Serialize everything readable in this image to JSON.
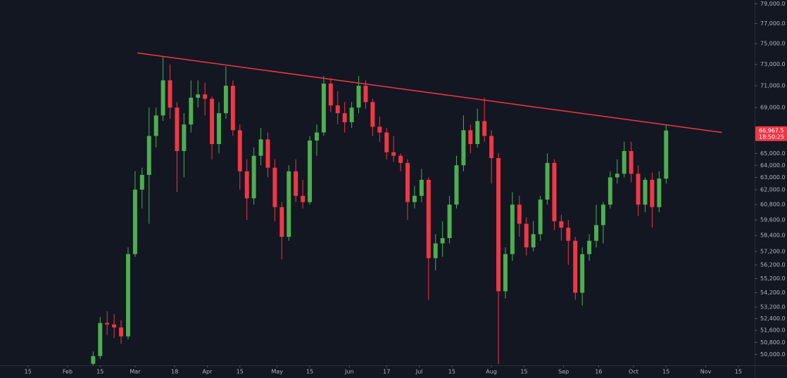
{
  "chart_data": {
    "type": "candlestick",
    "log_scale": true,
    "grid": false,
    "up_color": "#4caf50",
    "down_color": "#f23645",
    "xlim": [
      3,
      327
    ],
    "xticks": [
      {
        "value": 15,
        "label": "15"
      },
      {
        "value": 32,
        "label": "Feb"
      },
      {
        "value": 46,
        "label": "15"
      },
      {
        "value": 61,
        "label": "Mar"
      },
      {
        "value": 78,
        "label": "18"
      },
      {
        "value": 92,
        "label": "Apr"
      },
      {
        "value": 106,
        "label": "15"
      },
      {
        "value": 122,
        "label": "May"
      },
      {
        "value": 136,
        "label": "15"
      },
      {
        "value": 153,
        "label": "Jun"
      },
      {
        "value": 169,
        "label": "17"
      },
      {
        "value": 183,
        "label": "Jul"
      },
      {
        "value": 197,
        "label": "15"
      },
      {
        "value": 214,
        "label": "Aug"
      },
      {
        "value": 228,
        "label": "15"
      },
      {
        "value": 245,
        "label": "Sep"
      },
      {
        "value": 260,
        "label": "16"
      },
      {
        "value": 275,
        "label": "Oct"
      },
      {
        "value": 289,
        "label": "15"
      },
      {
        "value": 306,
        "label": "Nov"
      },
      {
        "value": 320,
        "label": "15"
      }
    ],
    "ylim": [
      49300,
      79400
    ],
    "yticks": [
      {
        "value": 79000,
        "label": "79,000.0"
      },
      {
        "value": 77000,
        "label": "77,000.0"
      },
      {
        "value": 75000,
        "label": "75,000.0"
      },
      {
        "value": 73000,
        "label": "73,000.0"
      },
      {
        "value": 71000,
        "label": "71,000.0"
      },
      {
        "value": 69000,
        "label": "69,000.0"
      },
      {
        "value": 65000,
        "label": "65,000.0"
      },
      {
        "value": 64000,
        "label": "64,000.0"
      },
      {
        "value": 63000,
        "label": "63,000.0"
      },
      {
        "value": 62000,
        "label": "62,000.0"
      },
      {
        "value": 60800,
        "label": "60,800.0"
      },
      {
        "value": 59600,
        "label": "59,600.0"
      },
      {
        "value": 58400,
        "label": "58,400.0"
      },
      {
        "value": 57200,
        "label": "57,200.0"
      },
      {
        "value": 56200,
        "label": "56,200.0"
      },
      {
        "value": 55200,
        "label": "55,200.0"
      },
      {
        "value": 54200,
        "label": "54,200.0"
      },
      {
        "value": 53200,
        "label": "53,200.0"
      },
      {
        "value": 52400,
        "label": "52,400.0"
      },
      {
        "value": 51600,
        "label": "51,600.0"
      },
      {
        "value": 50800,
        "label": "50,800.0"
      },
      {
        "value": 50000,
        "label": "50,000.0"
      }
    ],
    "last_price": {
      "value": 66967.5,
      "label": "66,967.5"
    },
    "countdown": "18:50:25",
    "trendline": {
      "color": "#f23645",
      "x": [
        62,
        313
      ],
      "y": [
        74100,
        66800
      ]
    },
    "x": [
      43,
      46,
      49,
      52,
      55,
      58,
      61,
      64,
      67,
      70,
      73,
      76,
      79,
      82,
      85,
      88,
      91,
      94,
      97,
      100,
      103,
      106,
      109,
      112,
      115,
      118,
      121,
      124,
      127,
      130,
      133,
      136,
      139,
      142,
      145,
      148,
      151,
      154,
      157,
      160,
      163,
      166,
      169,
      172,
      175,
      178,
      181,
      184,
      187,
      190,
      193,
      196,
      199,
      202,
      205,
      208,
      211,
      214,
      217,
      220,
      223,
      226,
      229,
      232,
      235,
      238,
      241,
      244,
      247,
      250,
      253,
      256,
      259,
      262,
      265,
      268,
      271,
      274,
      277,
      280,
      283,
      286,
      289
    ],
    "open": [
      49400,
      49900,
      52100,
      52000,
      51800,
      51200,
      57000,
      62000,
      63200,
      66500,
      68300,
      71500,
      69000,
      65200,
      67500,
      69900,
      70200,
      69800,
      65800,
      68500,
      71000,
      67000,
      63500,
      61300,
      64800,
      66200,
      63800,
      60600,
      58300,
      63500,
      61500,
      61000,
      66100,
      66800,
      71200,
      69200,
      68500,
      67700,
      69000,
      71000,
      69500,
      67300,
      66800,
      65100,
      64800,
      64200,
      61000,
      61500,
      62800,
      56700,
      57800,
      58200,
      60800,
      64000,
      67000,
      65800,
      67800,
      66500,
      64600,
      54300,
      57000,
      60800,
      59300,
      57500,
      58500,
      61200,
      64200,
      59500,
      59000,
      58000,
      54200,
      57000,
      58000,
      59200,
      60800,
      63000,
      63300,
      65200,
      63300,
      60800,
      62800,
      60600,
      62900
    ],
    "high": [
      50200,
      52500,
      52900,
      52700,
      52300,
      57500,
      63500,
      63800,
      69000,
      69000,
      73800,
      73000,
      69500,
      68500,
      71500,
      71500,
      71300,
      70000,
      69500,
      72800,
      71500,
      67500,
      64500,
      65500,
      67200,
      66800,
      64500,
      61000,
      64000,
      64500,
      62800,
      66500,
      67500,
      71900,
      71700,
      70500,
      69500,
      69500,
      71900,
      71500,
      69800,
      68200,
      67200,
      66500,
      65000,
      64500,
      62300,
      63700,
      63000,
      58500,
      59500,
      61500,
      64800,
      68300,
      67500,
      68900,
      69900,
      67000,
      65000,
      57500,
      61800,
      61500,
      59800,
      59500,
      61500,
      65000,
      64500,
      60000,
      59600,
      58300,
      57500,
      58500,
      60800,
      61000,
      63500,
      64500,
      66000,
      66000,
      64000,
      63000,
      63400,
      63500,
      67500
    ],
    "low": [
      49300,
      49700,
      51300,
      51100,
      50700,
      51000,
      56800,
      60500,
      59300,
      65500,
      67800,
      68000,
      61800,
      63000,
      66800,
      69000,
      68300,
      64500,
      65000,
      68000,
      66500,
      62000,
      59600,
      60800,
      64000,
      63000,
      59500,
      56600,
      58000,
      61000,
      60500,
      60800,
      64800,
      66500,
      68600,
      67500,
      66800,
      67200,
      68500,
      68900,
      66500,
      66000,
      64500,
      64300,
      63500,
      59600,
      60500,
      61000,
      53700,
      55800,
      56800,
      57800,
      60500,
      63500,
      65000,
      65500,
      66000,
      62500,
      49400,
      53800,
      56500,
      58300,
      56900,
      57200,
      58000,
      60800,
      58800,
      58000,
      56200,
      53700,
      53300,
      56500,
      57500,
      57800,
      60500,
      62500,
      63000,
      62600,
      59900,
      60200,
      59000,
      60200,
      62500
    ],
    "close": [
      49900,
      52100,
      52000,
      51800,
      51200,
      57000,
      62000,
      63200,
      66500,
      68300,
      71500,
      69000,
      65200,
      67500,
      69900,
      70200,
      69800,
      65800,
      68500,
      71000,
      67000,
      63500,
      61300,
      64800,
      66200,
      63800,
      60600,
      58300,
      63500,
      61500,
      61000,
      66100,
      66800,
      71200,
      69200,
      68500,
      67700,
      69000,
      71000,
      69500,
      67300,
      66800,
      65100,
      64800,
      64200,
      61000,
      61500,
      62800,
      56700,
      57800,
      58200,
      60800,
      64000,
      67000,
      65800,
      67800,
      66500,
      64600,
      54300,
      57000,
      60800,
      59300,
      57500,
      58500,
      61200,
      64200,
      59500,
      59000,
      58000,
      54200,
      57000,
      58000,
      59200,
      60800,
      63000,
      63300,
      65200,
      63300,
      60800,
      62800,
      60600,
      62900,
      66967.5
    ]
  }
}
